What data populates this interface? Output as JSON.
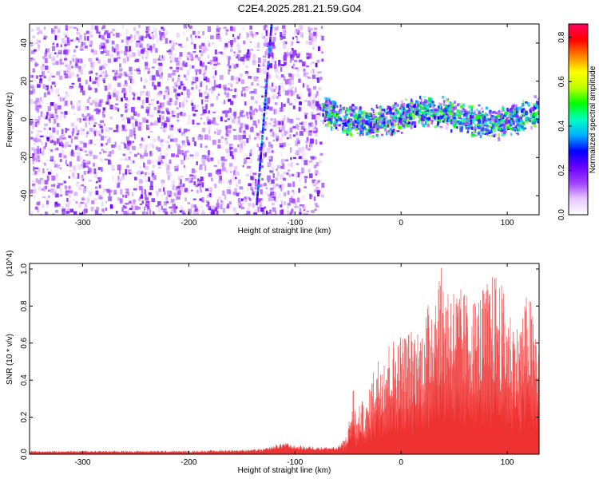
{
  "title": "C2E4.2025.281.21.59.G04",
  "chart_data": [
    {
      "type": "heatmap",
      "name": "spectrogram",
      "xlabel": "Height of straight line (km)",
      "ylabel": "Frequency (Hz)",
      "xlim": [
        -350,
        130
      ],
      "ylim": [
        -50,
        50
      ],
      "xticks": [
        -300,
        -200,
        -100,
        0,
        100
      ],
      "yticks": [
        40,
        20,
        0,
        -20,
        -40
      ],
      "colorbar": {
        "label": "Normalized spectral amplitude",
        "range": [
          0.0,
          0.86
        ],
        "ticks": [
          "0.0",
          "0.2",
          "0.4",
          "0.6",
          "0.8"
        ],
        "colormap": [
          "#ffffff",
          "#e6c8ff",
          "#a040ff",
          "#6a00ff",
          "#0000ff",
          "#00b0ff",
          "#00ffc0",
          "#00ff00",
          "#c0ff00",
          "#ffff00",
          "#ff8000",
          "#ff0000",
          "#ff0060"
        ]
      },
      "regions": [
        {
          "x": [
            -350,
            -75
          ],
          "y": [
            -50,
            50
          ],
          "description": "broadband noise",
          "amplitude": 0.1
        },
        {
          "x": [
            -75,
            130
          ],
          "y": [
            -8,
            10
          ],
          "description": "narrow band near 0 Hz",
          "amplitude": 0.3
        },
        {
          "x": [
            -137,
            -123
          ],
          "y": [
            -45,
            50
          ],
          "description": "diagonal streak",
          "amplitude": 0.25
        }
      ]
    },
    {
      "type": "line",
      "name": "snr",
      "xlabel": "Height of straight line (km)",
      "ylabel": "SNR (10 * v/v)",
      "y_multiplier": "(x10^4)",
      "xlim": [
        -350,
        130
      ],
      "ylim": [
        0,
        1.03
      ],
      "xticks": [
        -300,
        -200,
        -100,
        0,
        100
      ],
      "yticks": [
        "0.0",
        "0.2",
        "0.4",
        "0.6",
        "0.8",
        "1.0"
      ],
      "color": "#ee3333",
      "envelope": {
        "x": [
          -350,
          -300,
          -200,
          -130,
          -110,
          -100,
          -60,
          -52,
          -48,
          -45,
          -42,
          -38,
          -33,
          -25,
          -15,
          0,
          20,
          35,
          50,
          70,
          90,
          100,
          110,
          120,
          130
        ],
        "y": [
          0.02,
          0.02,
          0.02,
          0.03,
          0.07,
          0.05,
          0.04,
          0.1,
          0.22,
          0.38,
          0.18,
          0.3,
          0.26,
          0.5,
          0.6,
          0.66,
          0.7,
          1.03,
          0.92,
          0.85,
          1.0,
          0.82,
          0.7,
          0.9,
          0.62
        ]
      }
    }
  ]
}
